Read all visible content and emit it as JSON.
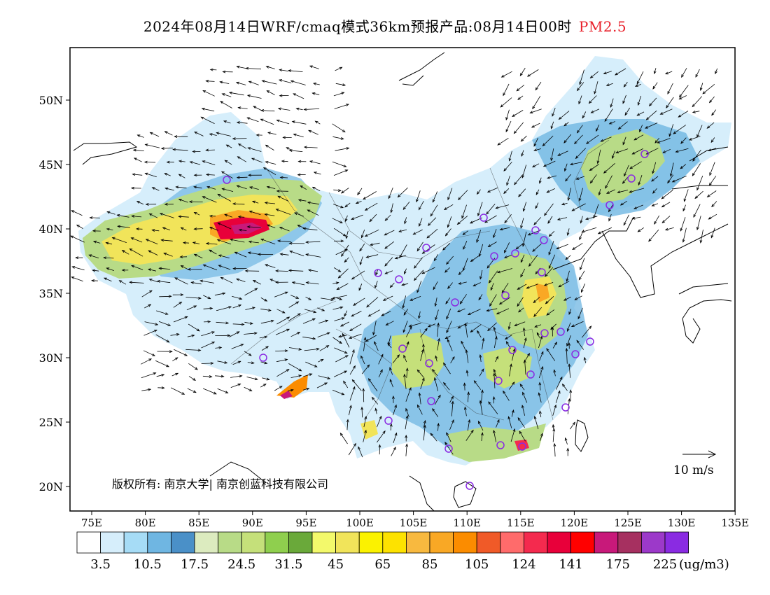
{
  "title": {
    "main": "2024年08月14日WRF/cmaq模式36km预报产品:08月14日00时",
    "pollutant": "PM2.5"
  },
  "map": {
    "lat_ticks": [
      "50N",
      "45N",
      "40N",
      "35N",
      "30N",
      "25N",
      "20N"
    ],
    "lon_ticks": [
      "75E",
      "80E",
      "85E",
      "90E",
      "95E",
      "100E",
      "105E",
      "110E",
      "115E",
      "120E",
      "125E",
      "130E",
      "135E"
    ],
    "copyright": "版权所有: 南京大学| 南京创蓝科技有限公司",
    "wind_scale_label": "10 m/s"
  },
  "colorbar": {
    "unit": "(ug/m3)",
    "colors": [
      "#ffffff",
      "#d6eefb",
      "#a6dcf6",
      "#6fb6e2",
      "#4a90c8",
      "#dcebbf",
      "#b8db87",
      "#c5e07a",
      "#8fcf4e",
      "#6aa93a",
      "#f3f96b",
      "#f1e45a",
      "#fbf200",
      "#fde200",
      "#f8b93f",
      "#f9a825",
      "#fb8c00",
      "#f05a28",
      "#ff6b6b",
      "#f42a4e",
      "#e8003a",
      "#ff0000",
      "#c8197a",
      "#a63060",
      "#9c39c9",
      "#8a2be2"
    ],
    "labels": [
      "3.5",
      "10.5",
      "17.5",
      "24.5",
      "31.5",
      "45",
      "65",
      "85",
      "105",
      "124",
      "141",
      "175",
      "225"
    ]
  }
}
